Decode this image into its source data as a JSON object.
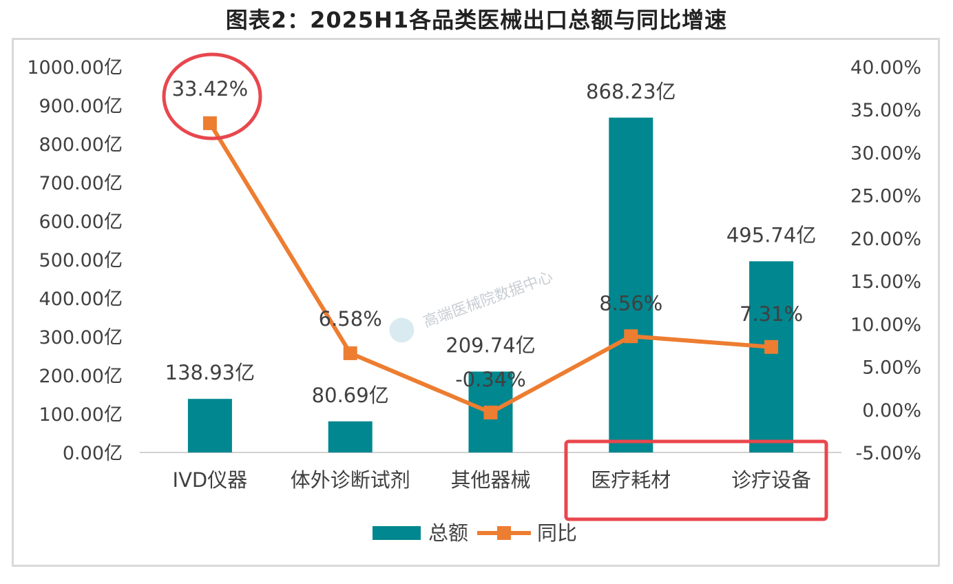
{
  "title": "图表2：2025H1各品类医械出口总额与同比增速",
  "watermark": "高端医械院数据中心",
  "colors": {
    "bar": "#00878f",
    "line": "#ed7d31",
    "highlight": "#e8474d",
    "axis": "#d0d0d0",
    "text": "#404040"
  },
  "chart_data": {
    "type": "bar",
    "categories": [
      "IVD仪器",
      "体外诊断试剂",
      "其他器械",
      "医疗耗材",
      "诊疗设备"
    ],
    "series": [
      {
        "name": "总额",
        "type": "bar",
        "axis": "left",
        "values": [
          138.93,
          80.69,
          209.74,
          868.23,
          495.74
        ],
        "labels": [
          "138.93亿",
          "80.69亿",
          "209.74亿",
          "868.23亿",
          "495.74亿"
        ]
      },
      {
        "name": "同比",
        "type": "line",
        "axis": "right",
        "values": [
          33.42,
          6.58,
          -0.34,
          8.56,
          7.31
        ],
        "labels": [
          "33.42%",
          "6.58%",
          "-0.34%",
          "8.56%",
          "7.31%"
        ]
      }
    ],
    "y_left": {
      "min": 0,
      "max": 1000,
      "ticks": [
        "0.00亿",
        "100.00亿",
        "200.00亿",
        "300.00亿",
        "400.00亿",
        "500.00亿",
        "600.00亿",
        "700.00亿",
        "800.00亿",
        "900.00亿",
        "1000.00亿"
      ]
    },
    "y_right": {
      "min": -5,
      "max": 40,
      "ticks": [
        "-5.00%",
        "0.00%",
        "5.00%",
        "10.00%",
        "15.00%",
        "20.00%",
        "25.00%",
        "30.00%",
        "35.00%",
        "40.00%"
      ]
    },
    "grid": false,
    "legend": "bottom",
    "annotations": {
      "circled_label": "33.42%",
      "boxed_categories": [
        "医疗耗材",
        "诊疗设备"
      ]
    }
  }
}
